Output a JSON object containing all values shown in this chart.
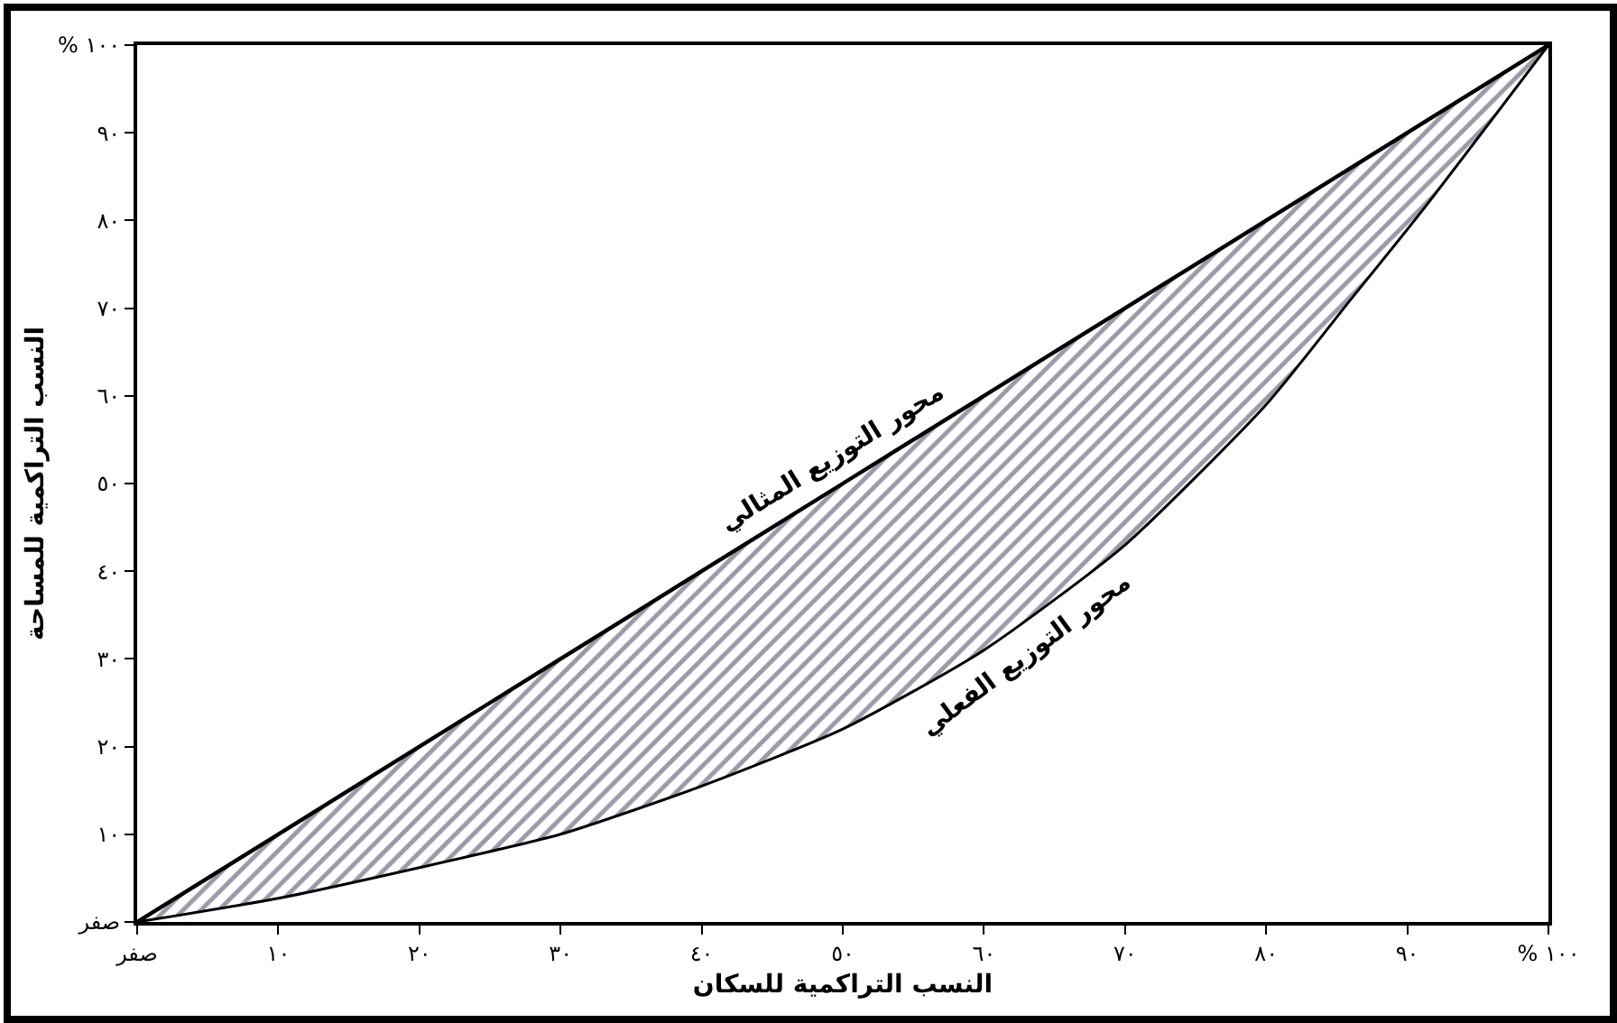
{
  "chart_data": {
    "type": "line",
    "xlabel": "النسب التراكمية للسكان",
    "ylabel": "النسب التراكمية للمساحة",
    "xlim": [
      0,
      100
    ],
    "ylim": [
      0,
      100
    ],
    "xticks": [
      {
        "value": 0,
        "label": "صفر"
      },
      {
        "value": 10,
        "label": "١٠"
      },
      {
        "value": 20,
        "label": "٢٠"
      },
      {
        "value": 30,
        "label": "٣٠"
      },
      {
        "value": 40,
        "label": "٤٠"
      },
      {
        "value": 50,
        "label": "٥٠"
      },
      {
        "value": 60,
        "label": "٦٠"
      },
      {
        "value": 70,
        "label": "٧٠"
      },
      {
        "value": 80,
        "label": "٨٠"
      },
      {
        "value": 90,
        "label": "٩٠"
      },
      {
        "value": 100,
        "label": "% ١٠٠"
      }
    ],
    "yticks": [
      {
        "value": 0,
        "label": "صفر"
      },
      {
        "value": 10,
        "label": "١٠"
      },
      {
        "value": 20,
        "label": "٢٠"
      },
      {
        "value": 30,
        "label": "٣٠"
      },
      {
        "value": 40,
        "label": "٤٠"
      },
      {
        "value": 50,
        "label": "٥٠"
      },
      {
        "value": 60,
        "label": "٦٠"
      },
      {
        "value": 70,
        "label": "٧٠"
      },
      {
        "value": 80,
        "label": "٨٠"
      },
      {
        "value": 90,
        "label": "٩٠"
      },
      {
        "value": 100,
        "label": "% ١٠٠"
      }
    ],
    "series": [
      {
        "name": "محور التوزيع المثالي",
        "color": "#000000",
        "x": [
          0,
          10,
          20,
          30,
          40,
          50,
          60,
          70,
          80,
          86,
          91,
          100
        ],
        "values": [
          0,
          10,
          20,
          30,
          40,
          50,
          60,
          70,
          80,
          86,
          91,
          100
        ],
        "lower": [
          0,
          2.7,
          6.2,
          10,
          15.5,
          22,
          31,
          43,
          59,
          71,
          81,
          100
        ],
        "upper": [
          0,
          10,
          20,
          30,
          40,
          50,
          60,
          70,
          80,
          86,
          91,
          100
        ]
      },
      {
        "name": "محور التوزيع الفعلي",
        "color": "#000000",
        "x": [
          0,
          10,
          20,
          30,
          40,
          50,
          60,
          70,
          80,
          86,
          91,
          100
        ],
        "values": [
          0,
          2.7,
          6.2,
          10,
          15.5,
          22,
          31,
          43,
          59,
          71,
          81,
          100
        ]
      }
    ],
    "grid": false,
    "legend": false,
    "marker": "none",
    "line_style": "solid"
  }
}
